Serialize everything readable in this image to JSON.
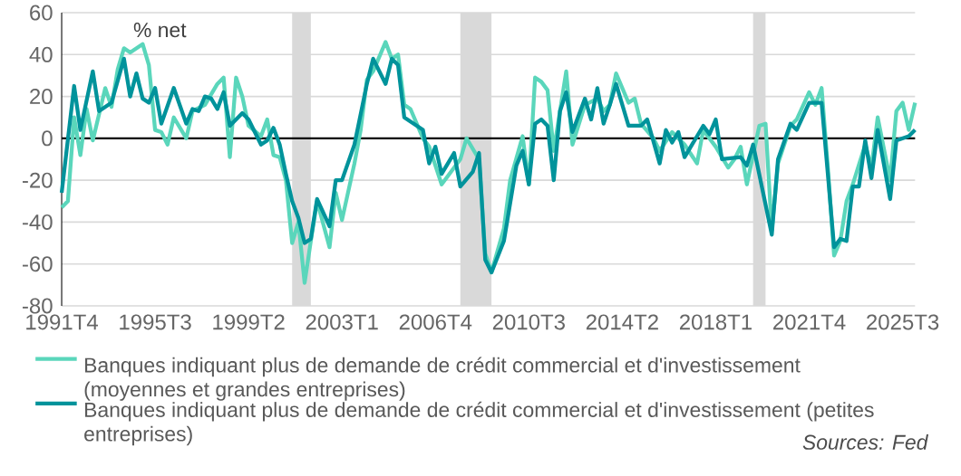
{
  "chart_data": {
    "type": "line",
    "ylabel": "% net",
    "xlim": [
      "1991-10",
      "2026-01"
    ],
    "ylim": [
      -80,
      60
    ],
    "xticks": [
      {
        "value": "1991-10",
        "label": "1991T4"
      },
      {
        "value": "1995-07",
        "label": "1995T3"
      },
      {
        "value": "1999-04",
        "label": "1999T2"
      },
      {
        "value": "2003-01",
        "label": "2003T1"
      },
      {
        "value": "2006-10",
        "label": "2006T4"
      },
      {
        "value": "2010-07",
        "label": "2010T3"
      },
      {
        "value": "2014-04",
        "label": "2014T2"
      },
      {
        "value": "2018-01",
        "label": "2018T1"
      },
      {
        "value": "2021-10",
        "label": "2021T4"
      },
      {
        "value": "2025-07",
        "label": "2025T3"
      }
    ],
    "yticks": [
      -80,
      -60,
      -40,
      -20,
      0,
      20,
      40,
      60
    ],
    "grid": "y",
    "legend": "bottom",
    "bands": [
      {
        "axis": "x",
        "from": "2001-01",
        "to": "2001-10",
        "color": "#d9d9d9"
      },
      {
        "axis": "x",
        "from": "2007-10",
        "to": "2009-01",
        "color": "#d9d9d9"
      },
      {
        "axis": "x",
        "from": "2019-07",
        "to": "2020-01",
        "color": "#d9d9d9"
      }
    ],
    "annotations": [
      "Sources: Fed"
    ],
    "series": [
      {
        "name": "Banques indiquant plus de demande de crédit commercial et d'investissement (moyennes et grandes entreprises)",
        "color": "#5ad6bb",
        "x": [
          "1991-10",
          "1992-01",
          "1992-04",
          "1992-07",
          "1992-10",
          "1993-01",
          "1993-07",
          "1993-10",
          "1994-01",
          "1994-04",
          "1994-07",
          "1995-01",
          "1995-04",
          "1995-07",
          "1995-10",
          "1996-01",
          "1996-04",
          "1996-10",
          "1997-01",
          "1997-07",
          "1998-01",
          "1998-04",
          "1998-07",
          "1998-10",
          "1999-01",
          "1999-04",
          "1999-10",
          "2000-01",
          "2000-04",
          "2000-07",
          "2000-10",
          "2001-01",
          "2001-04",
          "2001-07",
          "2001-10",
          "2002-01",
          "2002-07",
          "2002-10",
          "2003-01",
          "2003-07",
          "2003-10",
          "2004-01",
          "2004-04",
          "2004-10",
          "2005-01",
          "2005-04",
          "2005-07",
          "2005-10",
          "2006-04",
          "2006-07",
          "2007-01",
          "2007-10",
          "2008-01",
          "2008-07",
          "2008-10",
          "2009-01",
          "2009-07",
          "2009-10",
          "2010-04",
          "2010-07",
          "2010-10",
          "2011-01",
          "2011-04",
          "2011-07",
          "2012-01",
          "2012-04",
          "2012-10",
          "2013-04",
          "2013-07",
          "2013-10",
          "2014-01",
          "2014-07",
          "2014-10",
          "2015-01",
          "2015-07",
          "2015-10",
          "2016-04",
          "2016-10",
          "2017-04",
          "2017-07",
          "2018-01",
          "2018-07",
          "2018-10",
          "2019-01",
          "2019-04",
          "2019-10",
          "2020-01",
          "2020-04",
          "2020-07",
          "2021-01",
          "2021-04",
          "2021-10",
          "2022-01",
          "2022-04",
          "2022-07",
          "2022-10",
          "2023-01",
          "2023-04",
          "2023-07",
          "2024-01",
          "2024-04",
          "2024-07",
          "2025-01",
          "2025-04",
          "2025-07",
          "2025-10",
          "2026-01"
        ],
        "values": [
          -33,
          -30,
          10,
          -8,
          14,
          -1,
          24,
          15,
          33,
          43,
          41,
          45,
          35,
          4,
          3,
          -3,
          10,
          0,
          13,
          16,
          26,
          29,
          -9,
          29,
          20,
          6,
          1,
          9,
          -8,
          -9,
          -20,
          -50,
          -40,
          -69,
          -49,
          -30,
          -52,
          -26,
          -39,
          -12,
          4,
          28,
          32,
          46,
          38,
          40,
          16,
          14,
          0,
          -4,
          -22,
          -10,
          0,
          -10,
          -55,
          -64,
          -43,
          -20,
          1,
          -22,
          29,
          27,
          23,
          -6,
          32,
          -3,
          16,
          19,
          13,
          16,
          31,
          17,
          19,
          7,
          0,
          -6,
          3,
          -3,
          -12,
          4,
          -4,
          -14,
          -10,
          -4,
          -22,
          6,
          7,
          -44,
          -12,
          6,
          9,
          22,
          16,
          24,
          -14,
          -56,
          -49,
          -30,
          -22,
          -3,
          -14,
          10,
          -20,
          13,
          17,
          4,
          17
        ]
      },
      {
        "name": "Banques indiquant plus de demande de crédit commercial et d'investissement (petites entreprises)",
        "color": "#00939b",
        "x": [
          "1991-10",
          "1992-04",
          "1992-07",
          "1993-01",
          "1993-04",
          "1993-10",
          "1994-04",
          "1994-07",
          "1994-10",
          "1995-01",
          "1995-04",
          "1995-07",
          "1995-10",
          "1996-04",
          "1996-10",
          "1997-01",
          "1997-04",
          "1997-07",
          "1997-10",
          "1998-01",
          "1998-04",
          "1998-07",
          "1999-01",
          "1999-04",
          "1999-10",
          "2000-01",
          "2000-04",
          "2000-07",
          "2000-10",
          "2001-01",
          "2001-04",
          "2001-07",
          "2001-10",
          "2002-01",
          "2002-07",
          "2002-10",
          "2003-01",
          "2003-07",
          "2004-01",
          "2004-04",
          "2004-10",
          "2005-01",
          "2005-04",
          "2005-07",
          "2006-04",
          "2006-07",
          "2006-10",
          "2007-01",
          "2007-07",
          "2007-10",
          "2008-04",
          "2008-07",
          "2008-10",
          "2009-01",
          "2009-07",
          "2010-01",
          "2010-04",
          "2010-07",
          "2010-10",
          "2011-01",
          "2011-04",
          "2011-07",
          "2011-10",
          "2012-01",
          "2012-04",
          "2012-10",
          "2013-01",
          "2013-04",
          "2013-07",
          "2013-10",
          "2014-01",
          "2014-07",
          "2015-01",
          "2015-04",
          "2015-10",
          "2016-01",
          "2016-04",
          "2016-07",
          "2016-10",
          "2017-07",
          "2017-10",
          "2018-01",
          "2018-04",
          "2019-01",
          "2019-04",
          "2019-07",
          "2020-04",
          "2020-07",
          "2021-01",
          "2021-04",
          "2021-10",
          "2022-04",
          "2022-07",
          "2022-10",
          "2023-01",
          "2023-04",
          "2023-07",
          "2023-10",
          "2024-01",
          "2024-04",
          "2024-07",
          "2025-01",
          "2025-04",
          "2025-10",
          "2026-01"
        ],
        "values": [
          -26,
          25,
          4,
          32,
          13,
          17,
          38,
          20,
          31,
          19,
          17,
          24,
          7,
          24,
          7,
          14,
          13,
          20,
          19,
          14,
          22,
          6,
          12,
          9,
          -3,
          -1,
          5,
          -3,
          -17,
          -30,
          -38,
          -50,
          -48,
          -29,
          -42,
          -20,
          -20,
          -3,
          26,
          38,
          26,
          38,
          35,
          10,
          4,
          -12,
          -4,
          -17,
          -7,
          -23,
          -16,
          -7,
          -58,
          -64,
          -49,
          -13,
          -6,
          -22,
          7,
          9,
          6,
          -20,
          13,
          22,
          3,
          19,
          9,
          24,
          7,
          16,
          26,
          6,
          6,
          9,
          -12,
          4,
          -2,
          3,
          -9,
          6,
          2,
          9,
          -10,
          -9,
          -13,
          -3,
          -46,
          -10,
          7,
          4,
          17,
          17,
          -17,
          -52,
          -48,
          -49,
          -23,
          -23,
          -1,
          -19,
          4,
          -29,
          -1,
          1,
          4
        ]
      }
    ]
  }
}
